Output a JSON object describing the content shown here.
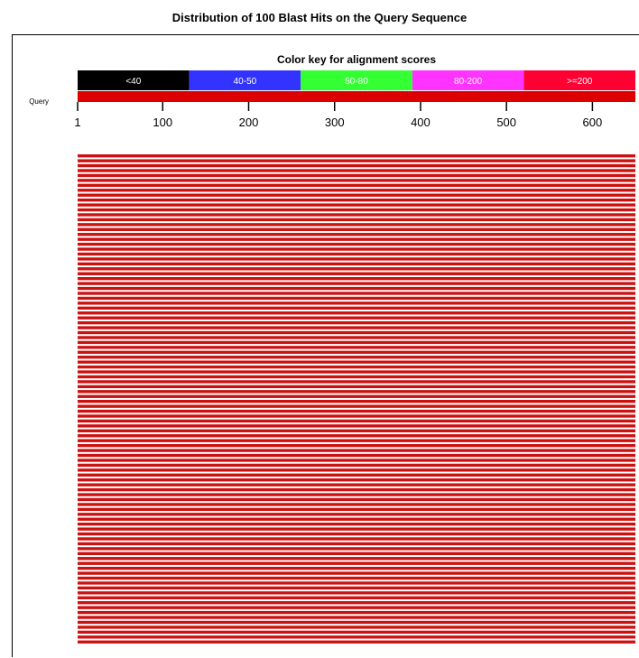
{
  "title": "Distribution of 100 Blast Hits on the Query Sequence",
  "chart_data": {
    "type": "bar",
    "subtype": "blast-hit-distribution",
    "title": "Distribution of 100 Blast Hits on the Query Sequence",
    "color_key": {
      "title": "Color key for alignment scores",
      "ranges": [
        {
          "label": "<40",
          "color": "#000000"
        },
        {
          "label": "40-50",
          "color": "#3333ff"
        },
        {
          "label": "50-80",
          "color": "#33ff33"
        },
        {
          "label": "80-200",
          "color": "#ff33ff"
        },
        {
          "label": ">=200",
          "color": "#ff0033"
        }
      ]
    },
    "query": {
      "label": "Query",
      "start": 1,
      "end": 650,
      "color": "#dd0000"
    },
    "x_ticks": [
      1,
      100,
      200,
      300,
      400,
      500,
      600
    ],
    "x_tick_labels": [
      "1",
      "100",
      "200",
      "300",
      "400",
      "500",
      "600"
    ],
    "xlim": [
      1,
      650
    ],
    "hits": {
      "count": 100,
      "start": 1,
      "end": 650,
      "score_range": ">=200",
      "color": "#cc1111"
    }
  }
}
